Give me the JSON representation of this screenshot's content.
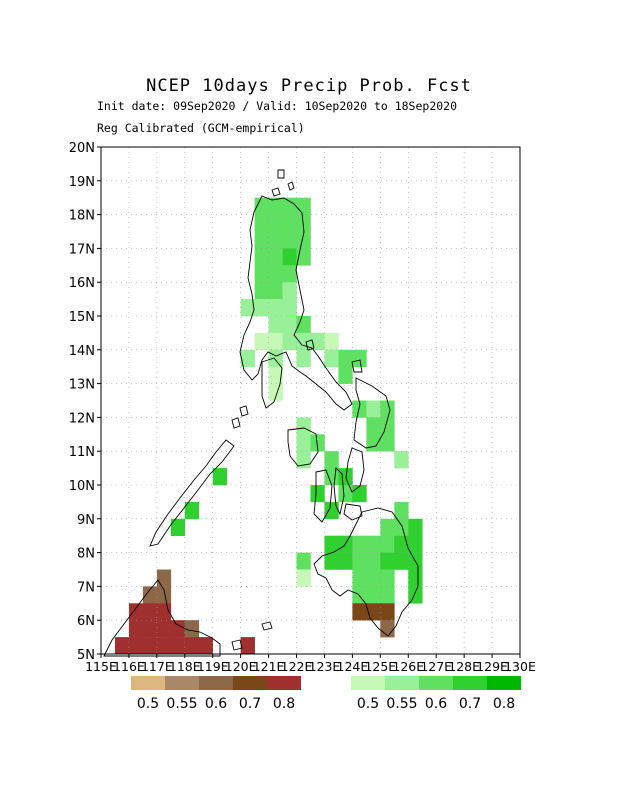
{
  "title": "NCEP 10days Precip Prob. Fcst",
  "subtitle_dates": "Init date: 09Sep2020 / Valid: 10Sep2020 to 18Sep2020",
  "subtitle_method": "Reg Calibrated (GCM-empirical)",
  "colors": {
    "dry": [
      "#dcb880",
      "#a88868",
      "#8c6848",
      "#7a4818",
      "#a03030"
    ],
    "wet": [
      "#c8f8b8",
      "#98f098",
      "#60e060",
      "#30d030",
      "#00b800"
    ],
    "coast": "#000000",
    "grid": "#999999"
  },
  "chart_data": {
    "type": "heatmap",
    "title": "NCEP 10days Precip Prob. Fcst",
    "lon_range": [
      115,
      130
    ],
    "lat_range": [
      5,
      20
    ],
    "grid_step_deg": 0.5,
    "lon_ticks": [
      "115E",
      "116E",
      "117E",
      "118E",
      "119E",
      "120E",
      "121E",
      "122E",
      "123E",
      "124E",
      "125E",
      "126E",
      "127E",
      "128E",
      "129E",
      "130E"
    ],
    "lat_ticks": [
      "5N",
      "6N",
      "7N",
      "8N",
      "9N",
      "10N",
      "11N",
      "12N",
      "13N",
      "14N",
      "15N",
      "16N",
      "17N",
      "18N",
      "19N",
      "20N"
    ],
    "grid": true,
    "legend_dry": {
      "levels": [
        0.5,
        0.55,
        0.6,
        0.7,
        0.8
      ],
      "labels": [
        "0.5",
        "0.55",
        "0.6",
        "0.7",
        "0.8"
      ]
    },
    "legend_wet": {
      "levels": [
        0.5,
        0.55,
        0.6,
        0.7,
        0.8
      ],
      "labels": [
        "0.5",
        "0.55",
        "0.6",
        "0.7",
        "0.8"
      ]
    },
    "cells": [
      {
        "lon": 120.5,
        "lat": 17.5,
        "cat": "wet",
        "p": 0.6
      },
      {
        "lon": 121.0,
        "lat": 17.5,
        "cat": "wet",
        "p": 0.6
      },
      {
        "lon": 121.5,
        "lat": 17.5,
        "cat": "wet",
        "p": 0.6
      },
      {
        "lon": 122.0,
        "lat": 17.5,
        "cat": "wet",
        "p": 0.6
      },
      {
        "lon": 120.5,
        "lat": 18.0,
        "cat": "wet",
        "p": 0.6
      },
      {
        "lon": 121.0,
        "lat": 18.0,
        "cat": "wet",
        "p": 0.6
      },
      {
        "lon": 121.5,
        "lat": 18.0,
        "cat": "wet",
        "p": 0.6
      },
      {
        "lon": 122.0,
        "lat": 18.0,
        "cat": "wet",
        "p": 0.6
      },
      {
        "lon": 120.5,
        "lat": 17.0,
        "cat": "wet",
        "p": 0.6
      },
      {
        "lon": 121.0,
        "lat": 17.0,
        "cat": "wet",
        "p": 0.6
      },
      {
        "lon": 121.5,
        "lat": 17.0,
        "cat": "wet",
        "p": 0.6
      },
      {
        "lon": 122.0,
        "lat": 17.0,
        "cat": "wet",
        "p": 0.6
      },
      {
        "lon": 120.5,
        "lat": 16.5,
        "cat": "wet",
        "p": 0.6
      },
      {
        "lon": 121.0,
        "lat": 16.5,
        "cat": "wet",
        "p": 0.6
      },
      {
        "lon": 121.5,
        "lat": 16.5,
        "cat": "wet",
        "p": 0.7
      },
      {
        "lon": 122.0,
        "lat": 16.5,
        "cat": "wet",
        "p": 0.6
      },
      {
        "lon": 120.5,
        "lat": 16.0,
        "cat": "wet",
        "p": 0.6
      },
      {
        "lon": 121.0,
        "lat": 16.0,
        "cat": "wet",
        "p": 0.6
      },
      {
        "lon": 121.5,
        "lat": 16.0,
        "cat": "wet",
        "p": 0.6
      },
      {
        "lon": 120.5,
        "lat": 15.5,
        "cat": "wet",
        "p": 0.6
      },
      {
        "lon": 121.0,
        "lat": 15.5,
        "cat": "wet",
        "p": 0.6
      },
      {
        "lon": 121.5,
        "lat": 15.5,
        "cat": "wet",
        "p": 0.55
      },
      {
        "lon": 120.0,
        "lat": 15.0,
        "cat": "wet",
        "p": 0.55
      },
      {
        "lon": 120.5,
        "lat": 15.0,
        "cat": "wet",
        "p": 0.55
      },
      {
        "lon": 121.0,
        "lat": 15.0,
        "cat": "wet",
        "p": 0.55
      },
      {
        "lon": 121.5,
        "lat": 15.0,
        "cat": "wet",
        "p": 0.55
      },
      {
        "lon": 121.0,
        "lat": 14.5,
        "cat": "wet",
        "p": 0.55
      },
      {
        "lon": 121.5,
        "lat": 14.5,
        "cat": "wet",
        "p": 0.55
      },
      {
        "lon": 122.0,
        "lat": 14.5,
        "cat": "wet",
        "p": 0.6
      },
      {
        "lon": 120.5,
        "lat": 14.0,
        "cat": "wet",
        "p": 0.5
      },
      {
        "lon": 121.0,
        "lat": 14.0,
        "cat": "wet",
        "p": 0.5
      },
      {
        "lon": 121.5,
        "lat": 14.0,
        "cat": "wet",
        "p": 0.55
      },
      {
        "lon": 122.0,
        "lat": 14.0,
        "cat": "wet",
        "p": 0.55
      },
      {
        "lon": 122.5,
        "lat": 14.0,
        "cat": "wet",
        "p": 0.55
      },
      {
        "lon": 123.0,
        "lat": 14.0,
        "cat": "wet",
        "p": 0.5
      },
      {
        "lon": 120.0,
        "lat": 13.5,
        "cat": "wet",
        "p": 0.55
      },
      {
        "lon": 121.0,
        "lat": 13.5,
        "cat": "wet",
        "p": 0.55
      },
      {
        "lon": 122.0,
        "lat": 13.5,
        "cat": "wet",
        "p": 0.55
      },
      {
        "lon": 123.0,
        "lat": 13.5,
        "cat": "wet",
        "p": 0.55
      },
      {
        "lon": 123.5,
        "lat": 13.5,
        "cat": "wet",
        "p": 0.6
      },
      {
        "lon": 124.0,
        "lat": 13.5,
        "cat": "wet",
        "p": 0.6
      },
      {
        "lon": 121.0,
        "lat": 13.0,
        "cat": "wet",
        "p": 0.5
      },
      {
        "lon": 123.5,
        "lat": 13.0,
        "cat": "wet",
        "p": 0.6
      },
      {
        "lon": 121.0,
        "lat": 12.5,
        "cat": "wet",
        "p": 0.5
      },
      {
        "lon": 124.0,
        "lat": 12.0,
        "cat": "wet",
        "p": 0.6
      },
      {
        "lon": 124.5,
        "lat": 12.0,
        "cat": "wet",
        "p": 0.55
      },
      {
        "lon": 125.0,
        "lat": 12.0,
        "cat": "wet",
        "p": 0.6
      },
      {
        "lon": 122.0,
        "lat": 11.5,
        "cat": "wet",
        "p": 0.55
      },
      {
        "lon": 124.5,
        "lat": 11.5,
        "cat": "wet",
        "p": 0.6
      },
      {
        "lon": 125.0,
        "lat": 11.5,
        "cat": "wet",
        "p": 0.6
      },
      {
        "lon": 122.0,
        "lat": 11.0,
        "cat": "wet",
        "p": 0.55
      },
      {
        "lon": 122.5,
        "lat": 11.0,
        "cat": "wet",
        "p": 0.6
      },
      {
        "lon": 124.5,
        "lat": 11.0,
        "cat": "wet",
        "p": 0.6
      },
      {
        "lon": 125.0,
        "lat": 11.0,
        "cat": "wet",
        "p": 0.6
      },
      {
        "lon": 122.0,
        "lat": 10.5,
        "cat": "wet",
        "p": 0.55
      },
      {
        "lon": 123.0,
        "lat": 10.5,
        "cat": "wet",
        "p": 0.6
      },
      {
        "lon": 125.5,
        "lat": 10.5,
        "cat": "wet",
        "p": 0.55
      },
      {
        "lon": 123.0,
        "lat": 10.0,
        "cat": "wet",
        "p": 0.6
      },
      {
        "lon": 123.5,
        "lat": 10.0,
        "cat": "wet",
        "p": 0.7
      },
      {
        "lon": 119.0,
        "lat": 10.0,
        "cat": "wet",
        "p": 0.7
      },
      {
        "lon": 122.5,
        "lat": 9.5,
        "cat": "wet",
        "p": 0.7
      },
      {
        "lon": 123.5,
        "lat": 9.5,
        "cat": "wet",
        "p": 0.6
      },
      {
        "lon": 124.0,
        "lat": 9.5,
        "cat": "wet",
        "p": 0.7
      },
      {
        "lon": 123.0,
        "lat": 9.0,
        "cat": "wet",
        "p": 0.7
      },
      {
        "lon": 125.5,
        "lat": 9.0,
        "cat": "wet",
        "p": 0.6
      },
      {
        "lon": 118.0,
        "lat": 9.0,
        "cat": "wet",
        "p": 0.7
      },
      {
        "lon": 117.5,
        "lat": 8.5,
        "cat": "wet",
        "p": 0.7
      },
      {
        "lon": 125.0,
        "lat": 8.5,
        "cat": "wet",
        "p": 0.6
      },
      {
        "lon": 125.5,
        "lat": 8.5,
        "cat": "wet",
        "p": 0.6
      },
      {
        "lon": 126.0,
        "lat": 8.5,
        "cat": "wet",
        "p": 0.7
      },
      {
        "lon": 123.0,
        "lat": 8.0,
        "cat": "wet",
        "p": 0.7
      },
      {
        "lon": 123.5,
        "lat": 8.0,
        "cat": "wet",
        "p": 0.7
      },
      {
        "lon": 124.0,
        "lat": 8.0,
        "cat": "wet",
        "p": 0.6
      },
      {
        "lon": 124.5,
        "lat": 8.0,
        "cat": "wet",
        "p": 0.6
      },
      {
        "lon": 125.0,
        "lat": 8.0,
        "cat": "wet",
        "p": 0.6
      },
      {
        "lon": 125.5,
        "lat": 8.0,
        "cat": "wet",
        "p": 0.7
      },
      {
        "lon": 126.0,
        "lat": 8.0,
        "cat": "wet",
        "p": 0.7
      },
      {
        "lon": 122.0,
        "lat": 7.5,
        "cat": "wet",
        "p": 0.6
      },
      {
        "lon": 123.0,
        "lat": 7.5,
        "cat": "wet",
        "p": 0.7
      },
      {
        "lon": 123.5,
        "lat": 7.5,
        "cat": "wet",
        "p": 0.7
      },
      {
        "lon": 124.0,
        "lat": 7.5,
        "cat": "wet",
        "p": 0.6
      },
      {
        "lon": 124.5,
        "lat": 7.5,
        "cat": "wet",
        "p": 0.6
      },
      {
        "lon": 125.0,
        "lat": 7.5,
        "cat": "wet",
        "p": 0.7
      },
      {
        "lon": 125.5,
        "lat": 7.5,
        "cat": "wet",
        "p": 0.7
      },
      {
        "lon": 126.0,
        "lat": 7.5,
        "cat": "wet",
        "p": 0.7
      },
      {
        "lon": 122.0,
        "lat": 7.0,
        "cat": "wet",
        "p": 0.5
      },
      {
        "lon": 124.0,
        "lat": 7.0,
        "cat": "wet",
        "p": 0.6
      },
      {
        "lon": 124.5,
        "lat": 7.0,
        "cat": "wet",
        "p": 0.6
      },
      {
        "lon": 125.0,
        "lat": 7.0,
        "cat": "wet",
        "p": 0.6
      },
      {
        "lon": 126.0,
        "lat": 7.0,
        "cat": "wet",
        "p": 0.7
      },
      {
        "lon": 124.0,
        "lat": 6.5,
        "cat": "wet",
        "p": 0.6
      },
      {
        "lon": 124.5,
        "lat": 6.5,
        "cat": "wet",
        "p": 0.6
      },
      {
        "lon": 125.0,
        "lat": 6.5,
        "cat": "wet",
        "p": 0.6
      },
      {
        "lon": 126.0,
        "lat": 6.5,
        "cat": "wet",
        "p": 0.7
      },
      {
        "lon": 124.0,
        "lat": 6.0,
        "cat": "dry",
        "p": 0.7
      },
      {
        "lon": 124.5,
        "lat": 6.0,
        "cat": "dry",
        "p": 0.7
      },
      {
        "lon": 125.0,
        "lat": 6.0,
        "cat": "dry",
        "p": 0.7
      },
      {
        "lon": 125.0,
        "lat": 5.5,
        "cat": "dry",
        "p": 0.6
      },
      {
        "lon": 117.0,
        "lat": 7.0,
        "cat": "dry",
        "p": 0.6
      },
      {
        "lon": 116.5,
        "lat": 6.5,
        "cat": "dry",
        "p": 0.6
      },
      {
        "lon": 117.0,
        "lat": 6.5,
        "cat": "dry",
        "p": 0.6
      },
      {
        "lon": 116.0,
        "lat": 6.0,
        "cat": "dry",
        "p": 0.8
      },
      {
        "lon": 116.5,
        "lat": 6.0,
        "cat": "dry",
        "p": 0.8
      },
      {
        "lon": 117.0,
        "lat": 6.0,
        "cat": "dry",
        "p": 0.8
      },
      {
        "lon": 116.0,
        "lat": 5.5,
        "cat": "dry",
        "p": 0.8
      },
      {
        "lon": 116.5,
        "lat": 5.5,
        "cat": "dry",
        "p": 0.8
      },
      {
        "lon": 117.0,
        "lat": 5.5,
        "cat": "dry",
        "p": 0.8
      },
      {
        "lon": 117.5,
        "lat": 5.5,
        "cat": "dry",
        "p": 0.8
      },
      {
        "lon": 118.0,
        "lat": 5.5,
        "cat": "dry",
        "p": 0.6
      },
      {
        "lon": 115.5,
        "lat": 5.0,
        "cat": "dry",
        "p": 0.8
      },
      {
        "lon": 116.0,
        "lat": 5.0,
        "cat": "dry",
        "p": 0.8
      },
      {
        "lon": 116.5,
        "lat": 5.0,
        "cat": "dry",
        "p": 0.8
      },
      {
        "lon": 117.0,
        "lat": 5.0,
        "cat": "dry",
        "p": 0.8
      },
      {
        "lon": 117.5,
        "lat": 5.0,
        "cat": "dry",
        "p": 0.8
      },
      {
        "lon": 118.0,
        "lat": 5.0,
        "cat": "dry",
        "p": 0.8
      },
      {
        "lon": 118.5,
        "lat": 5.0,
        "cat": "dry",
        "p": 0.8
      },
      {
        "lon": 120.0,
        "lat": 5.0,
        "cat": "dry",
        "p": 0.8
      }
    ]
  }
}
